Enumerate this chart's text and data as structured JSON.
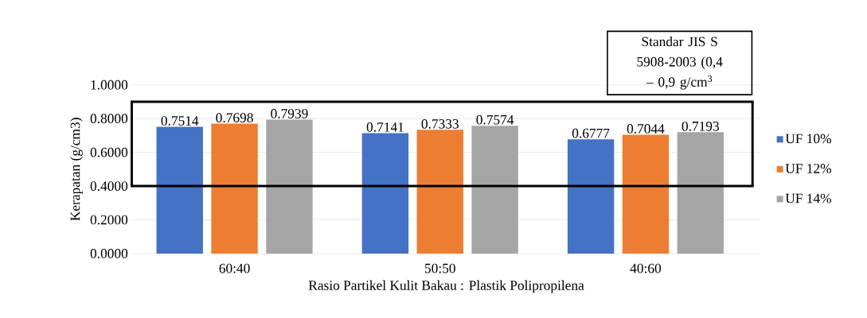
{
  "chart_data": {
    "type": "bar",
    "xlabel": "Rasio Partikel Kulit Bakau : Plastik Polipropilena",
    "ylabel": "Kerapatan (g/cm3)",
    "categories": [
      "60:40",
      "50:50",
      "40:60"
    ],
    "series": [
      {
        "name": "UF 10%",
        "color": "#4472c4",
        "values": [
          0.7514,
          0.7141,
          0.6777
        ]
      },
      {
        "name": "UF 12%",
        "color": "#ed7d31",
        "values": [
          0.7698,
          0.7333,
          0.7044
        ]
      },
      {
        "name": "UF 14%",
        "color": "#a5a5a5",
        "values": [
          0.7939,
          0.7574,
          0.7193
        ]
      }
    ],
    "ylim": [
      0,
      1
    ],
    "yticks": [
      {
        "value": 0,
        "label": "0.0000"
      },
      {
        "value": 0.2,
        "label": "0.2000"
      },
      {
        "value": 0.4,
        "label": "0.4000"
      },
      {
        "value": 0.6,
        "label": "0.6000"
      },
      {
        "value": 0.8,
        "label": "0.8000"
      },
      {
        "value": 1,
        "label": "1.0000"
      }
    ],
    "ref_lines": [
      {
        "axis": "y",
        "value": 0.4,
        "color": "#000000"
      },
      {
        "axis": "y",
        "value": 0.9,
        "label": "Standar JIS S 5908-2003 (0,4 – 0,9 g/cm$^{3}$",
        "color": "#000000"
      }
    ],
    "data_labels": true,
    "grid": "y",
    "legend": "right"
  }
}
